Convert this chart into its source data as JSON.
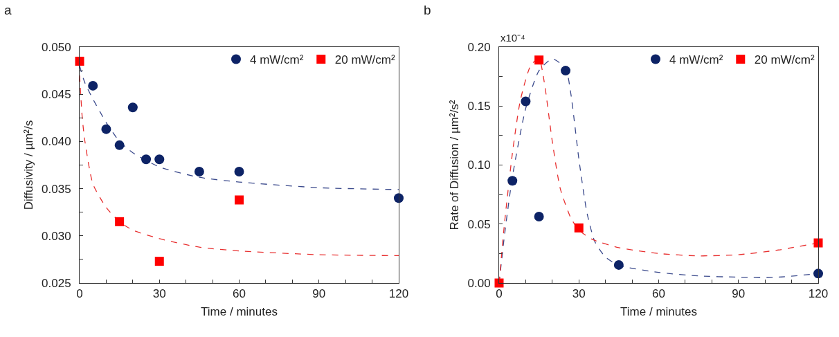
{
  "chart_data": [
    {
      "type": "scatter",
      "title": "a",
      "xlabel": "Time / minutes",
      "ylabel": "Diffusivity / µm²/s",
      "xlim": [
        0,
        120
      ],
      "xticks": [
        0,
        {
          "value": 10,
          "label": null
        },
        {
          "value": 20,
          "label": null
        },
        30,
        {
          "value": 40,
          "label": null
        },
        {
          "value": 50,
          "label": null
        },
        60,
        {
          "value": 70,
          "label": null
        },
        {
          "value": 80,
          "label": null
        },
        90,
        {
          "value": 100,
          "label": null
        },
        {
          "value": 110,
          "label": null
        },
        120
      ],
      "ylim": [
        0.025,
        0.05
      ],
      "yticks": [
        {
          "value": 0.025,
          "label": "0.025"
        },
        {
          "value": 0.0275,
          "label": null
        },
        {
          "value": 0.03,
          "label": "0.030"
        },
        {
          "value": 0.0325,
          "label": null
        },
        {
          "value": 0.035,
          "label": "0.035"
        },
        {
          "value": 0.0375,
          "label": null
        },
        {
          "value": 0.04,
          "label": "0.040"
        },
        {
          "value": 0.0425,
          "label": null
        },
        {
          "value": 0.045,
          "label": "0.045"
        },
        {
          "value": 0.0475,
          "label": null
        },
        {
          "value": 0.05,
          "label": "0.050"
        }
      ],
      "legend": "top right",
      "series": [
        {
          "type": "line",
          "color": "#3b4a8c",
          "line_style": "dashed",
          "marker": "none",
          "x": [
            0,
            2,
            5,
            10,
            15,
            20,
            30,
            45,
            60,
            90,
            120
          ],
          "values": [
            0.048,
            0.0462,
            0.0445,
            0.042,
            0.04,
            0.0388,
            0.0373,
            0.0362,
            0.0357,
            0.0351,
            0.0349
          ]
        },
        {
          "type": "line",
          "color": "#e83030",
          "line_style": "dashed",
          "marker": "none",
          "x": [
            0,
            1,
            2,
            5,
            10,
            15,
            20,
            30,
            45,
            60,
            90,
            120
          ],
          "values": [
            0.047,
            0.0425,
            0.04,
            0.0355,
            0.033,
            0.0315,
            0.0306,
            0.0297,
            0.0288,
            0.0284,
            0.028,
            0.0279
          ]
        },
        {
          "name": "4 mW/cm²",
          "color": "#0d2366",
          "marker": "circle",
          "x": [
            5,
            10,
            15,
            20,
            25,
            30,
            45,
            60,
            120
          ],
          "values": [
            0.0459,
            0.0413,
            0.0396,
            0.0436,
            0.0381,
            0.0381,
            0.0368,
            0.0368,
            0.034
          ]
        },
        {
          "name": "20 mW/cm²",
          "color": "#ff0000",
          "marker": "square",
          "x": [
            0,
            15,
            30,
            60
          ],
          "values": [
            0.0485,
            0.0315,
            0.0273,
            0.0338
          ]
        }
      ]
    },
    {
      "type": "scatter",
      "title": "b",
      "xlabel": "Time / minutes",
      "ylabel": "Rate of Diffusion / µm²/s²",
      "annotations": [
        "x10⁻⁴"
      ],
      "xlim": [
        0,
        120
      ],
      "xticks": [
        0,
        {
          "value": 10,
          "label": null
        },
        {
          "value": 20,
          "label": null
        },
        30,
        {
          "value": 40,
          "label": null
        },
        {
          "value": 50,
          "label": null
        },
        60,
        {
          "value": 70,
          "label": null
        },
        {
          "value": 80,
          "label": null
        },
        90,
        {
          "value": 100,
          "label": null
        },
        {
          "value": 110,
          "label": null
        },
        120
      ],
      "ylim": [
        0,
        0.2
      ],
      "yticks": [
        {
          "value": 0,
          "label": "0.00"
        },
        {
          "value": 0.025,
          "label": null
        },
        {
          "value": 0.05,
          "label": "0.05"
        },
        {
          "value": 0.075,
          "label": null
        },
        {
          "value": 0.1,
          "label": "0.10"
        },
        {
          "value": 0.125,
          "label": null
        },
        {
          "value": 0.15,
          "label": "0.15"
        },
        {
          "value": 0.175,
          "label": null
        },
        {
          "value": 0.2,
          "label": "0.20"
        }
      ],
      "legend": "top right",
      "series": [
        {
          "type": "line",
          "color": "#3b4a8c",
          "line_style": "dashed",
          "marker": "none",
          "x": [
            0,
            2,
            5,
            10,
            15,
            20,
            25,
            27,
            30,
            33,
            36,
            40,
            45,
            60,
            75,
            90,
            105,
            120
          ],
          "values": [
            0,
            0.04,
            0.09,
            0.148,
            0.18,
            0.19,
            0.182,
            0.16,
            0.105,
            0.06,
            0.035,
            0.022,
            0.015,
            0.009,
            0.006,
            0.005,
            0.005,
            0.008
          ]
        },
        {
          "type": "line",
          "color": "#e83030",
          "line_style": "dashed",
          "marker": "none",
          "x": [
            0,
            2,
            5,
            8,
            12,
            15,
            17,
            20,
            23,
            27,
            30,
            35,
            45,
            60,
            75,
            90,
            105,
            120
          ],
          "values": [
            0,
            0.05,
            0.11,
            0.155,
            0.185,
            0.19,
            0.17,
            0.12,
            0.08,
            0.055,
            0.045,
            0.037,
            0.03,
            0.025,
            0.023,
            0.024,
            0.028,
            0.034
          ]
        },
        {
          "name": "4 mW/cm²",
          "color": "#0d2366",
          "marker": "circle",
          "x": [
            5,
            10,
            15,
            25,
            45,
            120
          ],
          "values": [
            0.0867,
            0.154,
            0.0563,
            0.18,
            0.0153,
            0.008
          ]
        },
        {
          "name": "20 mW/cm²",
          "color": "#ff0000",
          "marker": "square",
          "x": [
            0,
            15,
            30,
            120
          ],
          "values": [
            0,
            0.189,
            0.0467,
            0.034
          ]
        }
      ]
    }
  ]
}
